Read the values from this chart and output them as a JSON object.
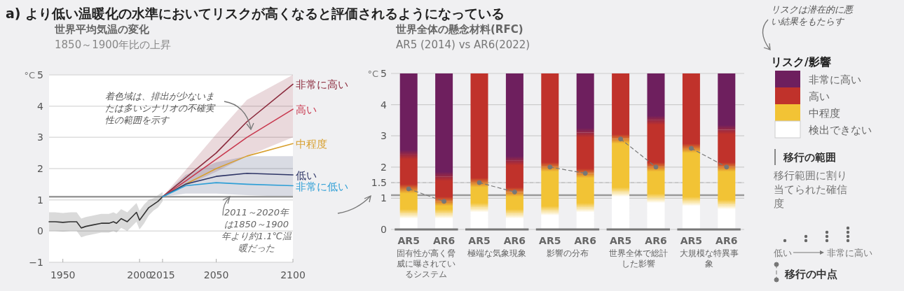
{
  "chart_data": [
    {
      "type": "line",
      "title": "世界平均気温の変化",
      "subtitle": "1850～1900年比の上昇",
      "ylabel": "°C",
      "annotations": [
        "a) より低い温暖化の水準においてリスクが高くなると評価されるようになっている",
        "着色域は、排出が少ないまたは多いシナリオの不確実性の範囲を示す"
      ],
      "xlim": [
        1941,
        2100
      ],
      "xticks": [
        1950,
        2000,
        2015,
        2050,
        2100
      ],
      "ylim": [
        -1,
        5
      ],
      "yticks": [
        -1,
        0,
        1,
        2,
        3,
        4,
        5
      ],
      "grid": "y",
      "ref_lines": [
        {
          "axis": "y",
          "value": 1.1,
          "label": "2011～2020年は1850～1900年より約1.1℃温暖だった",
          "color": "#999999"
        }
      ],
      "series": [
        {
          "color": "#333333",
          "x": [
            1941,
            1945,
            1950,
            1955,
            1959,
            1962,
            1965,
            1970,
            1975,
            1980,
            1983,
            1985,
            1988,
            1990,
            1992,
            1995,
            1998,
            2000,
            2003,
            2006,
            2009,
            2012,
            2015
          ],
          "values": [
            0.3,
            0.3,
            0.28,
            0.3,
            0.3,
            0.1,
            0.15,
            0.2,
            0.25,
            0.25,
            0.3,
            0.25,
            0.4,
            0.35,
            0.3,
            0.45,
            0.6,
            0.35,
            0.55,
            0.75,
            0.85,
            0.95,
            1.1
          ],
          "lower": [
            0.0,
            0.0,
            -0.02,
            0.0,
            0.0,
            -0.2,
            -0.15,
            -0.1,
            -0.05,
            -0.05,
            0.0,
            -0.05,
            0.1,
            0.05,
            0.0,
            0.15,
            0.3,
            0.05,
            0.25,
            0.5,
            0.65,
            0.75,
            0.95
          ],
          "upper": [
            0.6,
            0.6,
            0.58,
            0.6,
            0.6,
            0.4,
            0.45,
            0.5,
            0.55,
            0.55,
            0.6,
            0.55,
            0.7,
            0.65,
            0.6,
            0.75,
            0.9,
            0.65,
            0.85,
            1.0,
            1.05,
            1.15,
            1.25
          ]
        },
        {
          "name": "非常に高い",
          "color": "#8b2a3c",
          "x": [
            2015,
            2030,
            2050,
            2070,
            2100
          ],
          "values": [
            1.1,
            1.7,
            2.5,
            3.5,
            4.7
          ],
          "lower": [
            1.1,
            1.45,
            1.9,
            2.4,
            3.0
          ],
          "upper": [
            1.1,
            1.95,
            3.1,
            4.2,
            5.0
          ]
        },
        {
          "name": "高い",
          "color": "#c8384e",
          "x": [
            2015,
            2030,
            2050,
            2070,
            2100
          ],
          "values": [
            1.1,
            1.6,
            2.3,
            3.0,
            3.9
          ]
        },
        {
          "name": "中程度",
          "color": "#d8a030",
          "x": [
            2015,
            2030,
            2050,
            2070,
            2100
          ],
          "values": [
            1.1,
            1.5,
            2.0,
            2.4,
            2.8
          ]
        },
        {
          "name": "低い",
          "color": "#2e3566",
          "x": [
            2015,
            2030,
            2050,
            2070,
            2100
          ],
          "values": [
            1.1,
            1.5,
            1.75,
            1.85,
            1.8
          ],
          "lower": [
            1.1,
            1.2,
            1.2,
            1.15,
            1.1
          ],
          "upper": [
            1.1,
            1.8,
            2.2,
            2.4,
            2.4
          ]
        },
        {
          "name": "非常に低い",
          "color": "#2f9fd6",
          "x": [
            2015,
            2030,
            2050,
            2070,
            2100
          ],
          "values": [
            1.1,
            1.45,
            1.55,
            1.5,
            1.45
          ]
        }
      ]
    },
    {
      "type": "bar",
      "stacked": true,
      "title": "世界全体の懸念材料(RFC)",
      "subtitle": "AR5 (2014) vs AR6(2022)",
      "ylabel": "°C",
      "legend": "right",
      "legend_title": "リスク/影響",
      "categories": [
        "AR5",
        "AR6",
        "AR5",
        "AR6",
        "AR5",
        "AR6",
        "AR5",
        "AR6",
        "AR5",
        "AR6"
      ],
      "ylim": [
        0,
        5
      ],
      "yticks": [
        0,
        1,
        1.5,
        2,
        3,
        4,
        5
      ],
      "grid": "y",
      "ref_lines": [
        {
          "axis": "y",
          "value": 1.1,
          "color": "#999999"
        },
        {
          "axis": "y",
          "value": 1.5,
          "color": "#bbbbbb",
          "line_style": "dashed"
        }
      ],
      "annotations": [
        "固有性が高く脅威に曝されているシステム",
        "極端な気象現象",
        "影響の分布",
        "世界全体で総計した影響",
        "大規模な特異事象",
        "リスクは潜在的に悪い結果をもたらす",
        "移行の範囲",
        "移行範囲に割り当てられた確信度",
        "低い",
        "非常に高い"
      ],
      "series": [
        {
          "name": "検出できない",
          "color": "#ffffff",
          "values": [
            0.5,
            0.5,
            0.7,
            0.5,
            0.6,
            0.7,
            1.2,
            1.0,
            0.9,
            0.8
          ]
        },
        {
          "name": "中程度",
          "color": "#f2c335",
          "values": [
            0.8,
            0.4,
            0.8,
            0.7,
            1.4,
            1.1,
            1.7,
            1.0,
            1.7,
            1.2
          ]
        },
        {
          "name": "高い",
          "color": "#c0322b",
          "values": [
            1.1,
            0.8,
            3.5,
            1.0,
            3.0,
            1.3,
            2.1,
            1.5,
            2.4,
            1.2
          ]
        },
        {
          "name": "非常に高い",
          "color": "#6e1f5e",
          "values": [
            2.6,
            3.3,
            0,
            2.8,
            0,
            1.9,
            0,
            1.5,
            0,
            1.8
          ]
        },
        {
          "name": "移行の中点",
          "type": "line",
          "color": "#777777",
          "line_style": "dashed",
          "marker": "circle",
          "values": [
            1.3,
            0.9,
            null,
            null,
            null,
            null,
            null,
            null,
            null,
            null
          ]
        },
        {
          "type": "line",
          "color": "#777777",
          "line_style": "dashed",
          "marker": "circle",
          "values": [
            null,
            null,
            1.5,
            1.2,
            null,
            null,
            null,
            null,
            null,
            null
          ]
        },
        {
          "type": "line",
          "color": "#777777",
          "line_style": "dashed",
          "marker": "circle",
          "values": [
            null,
            null,
            null,
            null,
            2.0,
            1.8,
            null,
            null,
            null,
            null
          ]
        },
        {
          "type": "line",
          "color": "#777777",
          "line_style": "dashed",
          "marker": "circle",
          "values": [
            null,
            null,
            null,
            null,
            null,
            null,
            2.9,
            2.0,
            null,
            null
          ]
        },
        {
          "type": "line",
          "color": "#777777",
          "line_style": "dashed",
          "marker": "circle",
          "values": [
            null,
            null,
            null,
            null,
            null,
            null,
            null,
            null,
            2.6,
            2.0
          ]
        }
      ]
    }
  ]
}
